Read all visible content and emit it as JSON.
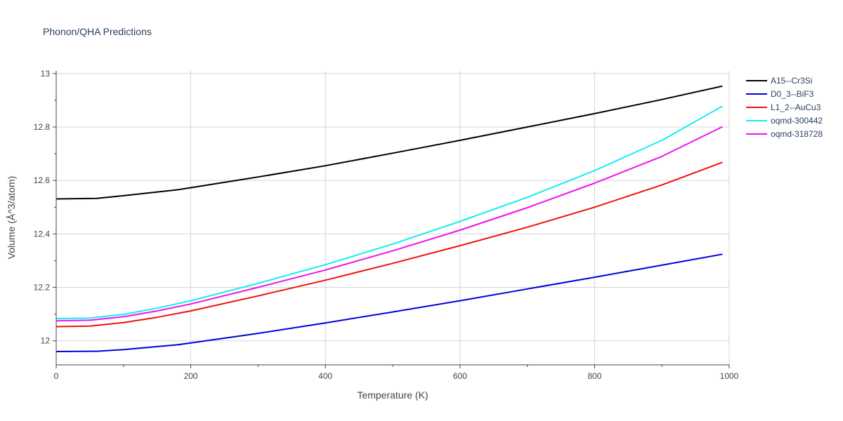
{
  "chart_data": {
    "type": "line",
    "title": "Phonon/QHA Predictions",
    "xlabel": "Temperature (K)",
    "ylabel": "Volume (Å^3/atom)",
    "xlim": [
      0,
      1000
    ],
    "ylim": [
      11.91,
      13.01
    ],
    "x_ticks": [
      0,
      200,
      400,
      600,
      800,
      1000
    ],
    "y_ticks": [
      12,
      12.2,
      12.4,
      12.6,
      12.8,
      13
    ],
    "grid": true,
    "legend_position": "top-right",
    "series": [
      {
        "name": "A15--Cr3Si",
        "color": "#000000",
        "x": [
          0,
          60,
          100,
          180,
          200,
          300,
          400,
          500,
          600,
          700,
          800,
          900,
          990
        ],
        "y": [
          12.531,
          12.533,
          12.543,
          12.565,
          12.573,
          12.613,
          12.655,
          12.702,
          12.75,
          12.8,
          12.85,
          12.903,
          12.953
        ]
      },
      {
        "name": "D0_3--BiF3",
        "color": "#0000dd",
        "x": [
          0,
          60,
          100,
          180,
          200,
          300,
          400,
          500,
          600,
          700,
          800,
          900,
          990
        ],
        "y": [
          11.96,
          11.961,
          11.967,
          11.985,
          11.992,
          12.028,
          12.067,
          12.108,
          12.15,
          12.194,
          12.238,
          12.283,
          12.324
        ]
      },
      {
        "name": "L1_2--AuCu3",
        "color": "#ee1111",
        "x": [
          0,
          50,
          100,
          150,
          200,
          300,
          400,
          500,
          600,
          700,
          800,
          900,
          990
        ],
        "y": [
          12.053,
          12.055,
          12.068,
          12.088,
          12.112,
          12.168,
          12.227,
          12.29,
          12.356,
          12.425,
          12.5,
          12.583,
          12.668
        ]
      },
      {
        "name": "oqmd-300442",
        "color": "#11eeee",
        "x": [
          0,
          50,
          100,
          150,
          200,
          300,
          400,
          500,
          600,
          700,
          800,
          900,
          990
        ],
        "y": [
          12.083,
          12.085,
          12.099,
          12.122,
          12.15,
          12.215,
          12.285,
          12.362,
          12.447,
          12.537,
          12.637,
          12.75,
          12.878
        ]
      },
      {
        "name": "oqmd-318728",
        "color": "#ee11ee",
        "x": [
          0,
          50,
          100,
          150,
          200,
          300,
          400,
          500,
          600,
          700,
          800,
          900,
          990
        ],
        "y": [
          12.075,
          12.077,
          12.09,
          12.112,
          12.138,
          12.2,
          12.265,
          12.337,
          12.414,
          12.498,
          12.59,
          12.69,
          12.801
        ]
      }
    ]
  }
}
